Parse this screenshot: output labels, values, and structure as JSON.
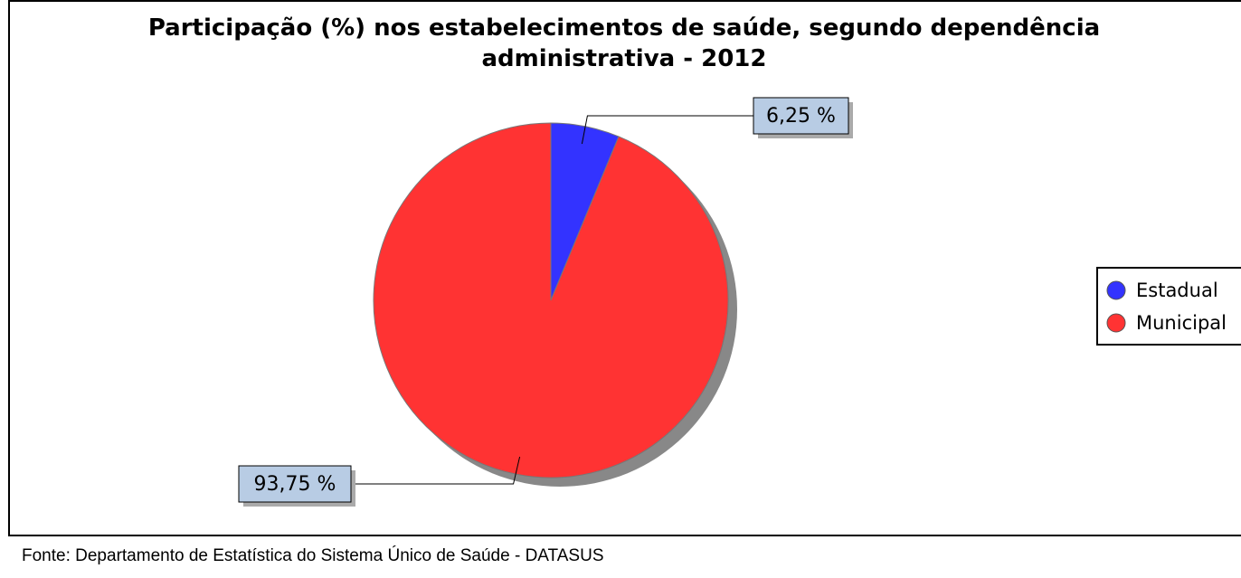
{
  "chart_data": {
    "type": "pie",
    "title": "Participação (%) nos estabelecimentos de saúde, segundo dependência administrativa - 2012",
    "categories": [
      "Estadual",
      "Municipal"
    ],
    "values": [
      6.25,
      93.75
    ],
    "value_labels": [
      "6,25 %",
      "93,75 %"
    ],
    "colors": [
      "#3333ff",
      "#ff3333"
    ],
    "legend": "right",
    "source": "Fonte: Departamento de Estatística do Sistema Único de Saúde - DATASUS"
  }
}
